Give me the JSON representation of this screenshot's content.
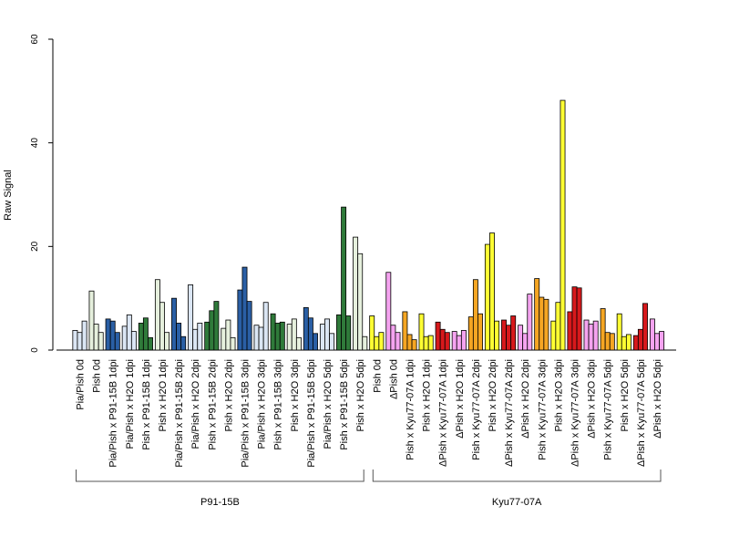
{
  "chart_data": {
    "type": "bar",
    "ylabel": "Raw Signal",
    "xlabel": "",
    "ylim": [
      0,
      60
    ],
    "yticks": [
      0,
      20,
      40,
      60
    ],
    "grid": false,
    "bars_per_category": 3,
    "categories": [
      {
        "label": "Pia/Pish 0d",
        "color": "#dbe6f4",
        "values": [
          3.8,
          3.4,
          5.6
        ]
      },
      {
        "label": "Pish 0d",
        "color": "#e6f0dd",
        "values": [
          11.4,
          5.0,
          3.4
        ]
      },
      {
        "label": "Pia/Pish x P91-15B 1dpi",
        "color": "#2a5fa5",
        "values": [
          6.0,
          5.6,
          3.4
        ]
      },
      {
        "label": "Pia/Pish x H2O 1dpi",
        "color": "#dbe6f4",
        "values": [
          4.6,
          6.8,
          3.6
        ]
      },
      {
        "label": "Pish x P91-15B 1dpi",
        "color": "#2f7a3a",
        "values": [
          5.2,
          6.2,
          2.4
        ]
      },
      {
        "label": "Pish x H2O 1dpi",
        "color": "#e6f0dd",
        "values": [
          13.6,
          9.2,
          3.4
        ]
      },
      {
        "label": "Pia/Pish x P91-15B 2dpi",
        "color": "#2a5fa5",
        "values": [
          10.0,
          5.2,
          2.6
        ]
      },
      {
        "label": "Pia/Pish x H2O 2dpi",
        "color": "#dbe6f4",
        "values": [
          12.6,
          4.0,
          5.2
        ]
      },
      {
        "label": "Pish x P91-15B 2dpi",
        "color": "#2f7a3a",
        "values": [
          5.4,
          7.6,
          9.4
        ]
      },
      {
        "label": "Pish x H2O 2dpi",
        "color": "#e6f0dd",
        "values": [
          4.2,
          5.8,
          2.4
        ]
      },
      {
        "label": "Pia/Pish x P91-15B 3dpi",
        "color": "#2a5fa5",
        "values": [
          11.6,
          16.0,
          9.4
        ]
      },
      {
        "label": "Pia/Pish x H2O 3dpi",
        "color": "#dbe6f4",
        "values": [
          4.8,
          4.4,
          9.2
        ]
      },
      {
        "label": "Pish x P91-15B 3dpi",
        "color": "#2f7a3a",
        "values": [
          7.0,
          5.2,
          5.4
        ]
      },
      {
        "label": "Pish x H2O 3dpi",
        "color": "#e6f0dd",
        "values": [
          5.0,
          6.0,
          2.4
        ]
      },
      {
        "label": "Pia/Pish x P91-15B 5dpi",
        "color": "#2a5fa5",
        "values": [
          8.2,
          6.2,
          3.2
        ]
      },
      {
        "label": "Pia/Pish x H2O 5dpi",
        "color": "#dbe6f4",
        "values": [
          5.0,
          6.0,
          3.2
        ]
      },
      {
        "label": "Pish x P91-15B 5dpi",
        "color": "#2f7a3a",
        "values": [
          6.8,
          27.6,
          6.6
        ]
      },
      {
        "label": "Pish x H2O 5dpi",
        "color": "#e6f0dd",
        "values": [
          21.8,
          18.6,
          2.6
        ]
      },
      {
        "label": "Pish 0d",
        "color": "#ffff33",
        "values": [
          6.6,
          2.6,
          3.4
        ]
      },
      {
        "label": "ΔPish 0d",
        "color": "#f5a3f0",
        "values": [
          15.0,
          4.8,
          3.4
        ]
      },
      {
        "label": "Pish x Kyu77-07A 1dpi",
        "color": "#f5a623",
        "values": [
          7.4,
          3.0,
          2.0
        ]
      },
      {
        "label": "Pish x H2O 1dpi",
        "color": "#ffff33",
        "values": [
          7.0,
          2.6,
          2.8
        ]
      },
      {
        "label": "ΔPish x Kyu77-07A 1dpi",
        "color": "#d7191c",
        "values": [
          5.4,
          4.0,
          3.4
        ]
      },
      {
        "label": "ΔPish x H2O 1dpi",
        "color": "#f5a3f0",
        "values": [
          3.6,
          2.8,
          3.8
        ]
      },
      {
        "label": "Pish x Kyu77-07A 2dpi",
        "color": "#f5a623",
        "values": [
          6.4,
          13.6,
          7.0
        ]
      },
      {
        "label": "Pish x H2O 2dpi",
        "color": "#ffff33",
        "values": [
          20.4,
          22.6,
          5.6
        ]
      },
      {
        "label": "ΔPish x Kyu77-07A 2dpi",
        "color": "#d7191c",
        "values": [
          5.8,
          4.8,
          6.6
        ]
      },
      {
        "label": "ΔPish x H2O 2dpi",
        "color": "#f5a3f0",
        "values": [
          4.8,
          3.2,
          10.8
        ]
      },
      {
        "label": "Pish x Kyu77-07A 3dpi",
        "color": "#f5a623",
        "values": [
          13.8,
          10.2,
          9.8
        ]
      },
      {
        "label": "Pish x H2O 3dpi",
        "color": "#ffff33",
        "values": [
          5.6,
          9.2,
          48.2
        ]
      },
      {
        "label": "ΔPish x Kyu77-07A 3dpi",
        "color": "#d7191c",
        "values": [
          7.4,
          12.2,
          12.0
        ]
      },
      {
        "label": "ΔPish x H2O 3dpi",
        "color": "#f5a3f0",
        "values": [
          5.8,
          5.0,
          5.6
        ]
      },
      {
        "label": "Pish x Kyu77-07A 5dpi",
        "color": "#f5a623",
        "values": [
          8.0,
          3.4,
          3.2
        ]
      },
      {
        "label": "Pish x H2O 5dpi",
        "color": "#ffff33",
        "values": [
          7.0,
          2.6,
          3.0
        ]
      },
      {
        "label": "ΔPish x Kyu77-07A 5dpi",
        "color": "#d7191c",
        "values": [
          2.8,
          4.0,
          9.0
        ]
      },
      {
        "label": "ΔPish x H2O 5dpi",
        "color": "#f5a3f0",
        "values": [
          6.0,
          3.2,
          3.6
        ]
      }
    ],
    "groups": [
      {
        "label": "P91-15B",
        "first": 0,
        "last": 17
      },
      {
        "label": "Kyu77-07A",
        "first": 18,
        "last": 35
      }
    ]
  }
}
